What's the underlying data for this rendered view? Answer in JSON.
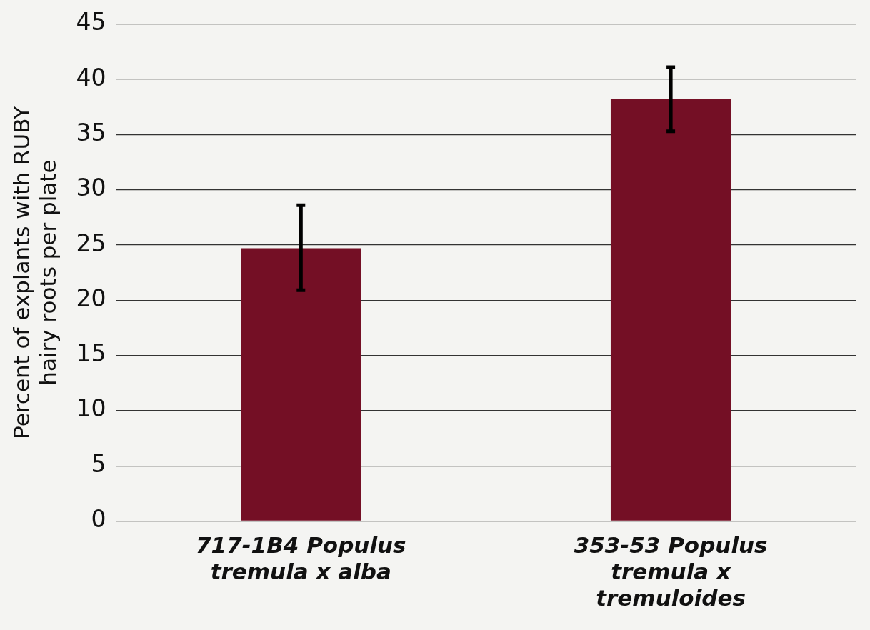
{
  "chart_data": {
    "type": "bar",
    "ylabel": "Percent of explants with RUBY hairy roots per plate",
    "categories": [
      "717-1B4 Populus tremula x alba",
      "353-53 Populus tremula x tremuloides"
    ],
    "values": [
      24.7,
      38.2
    ],
    "color": "#740f25",
    "errors": [
      [
        20.9,
        28.6
      ],
      [
        35.3,
        41.1
      ]
    ],
    "ylim": [
      0,
      45
    ],
    "yticks": [
      0,
      5,
      10,
      15,
      20,
      25,
      30,
      35,
      40,
      45
    ],
    "grid": "y",
    "legend": false
  }
}
